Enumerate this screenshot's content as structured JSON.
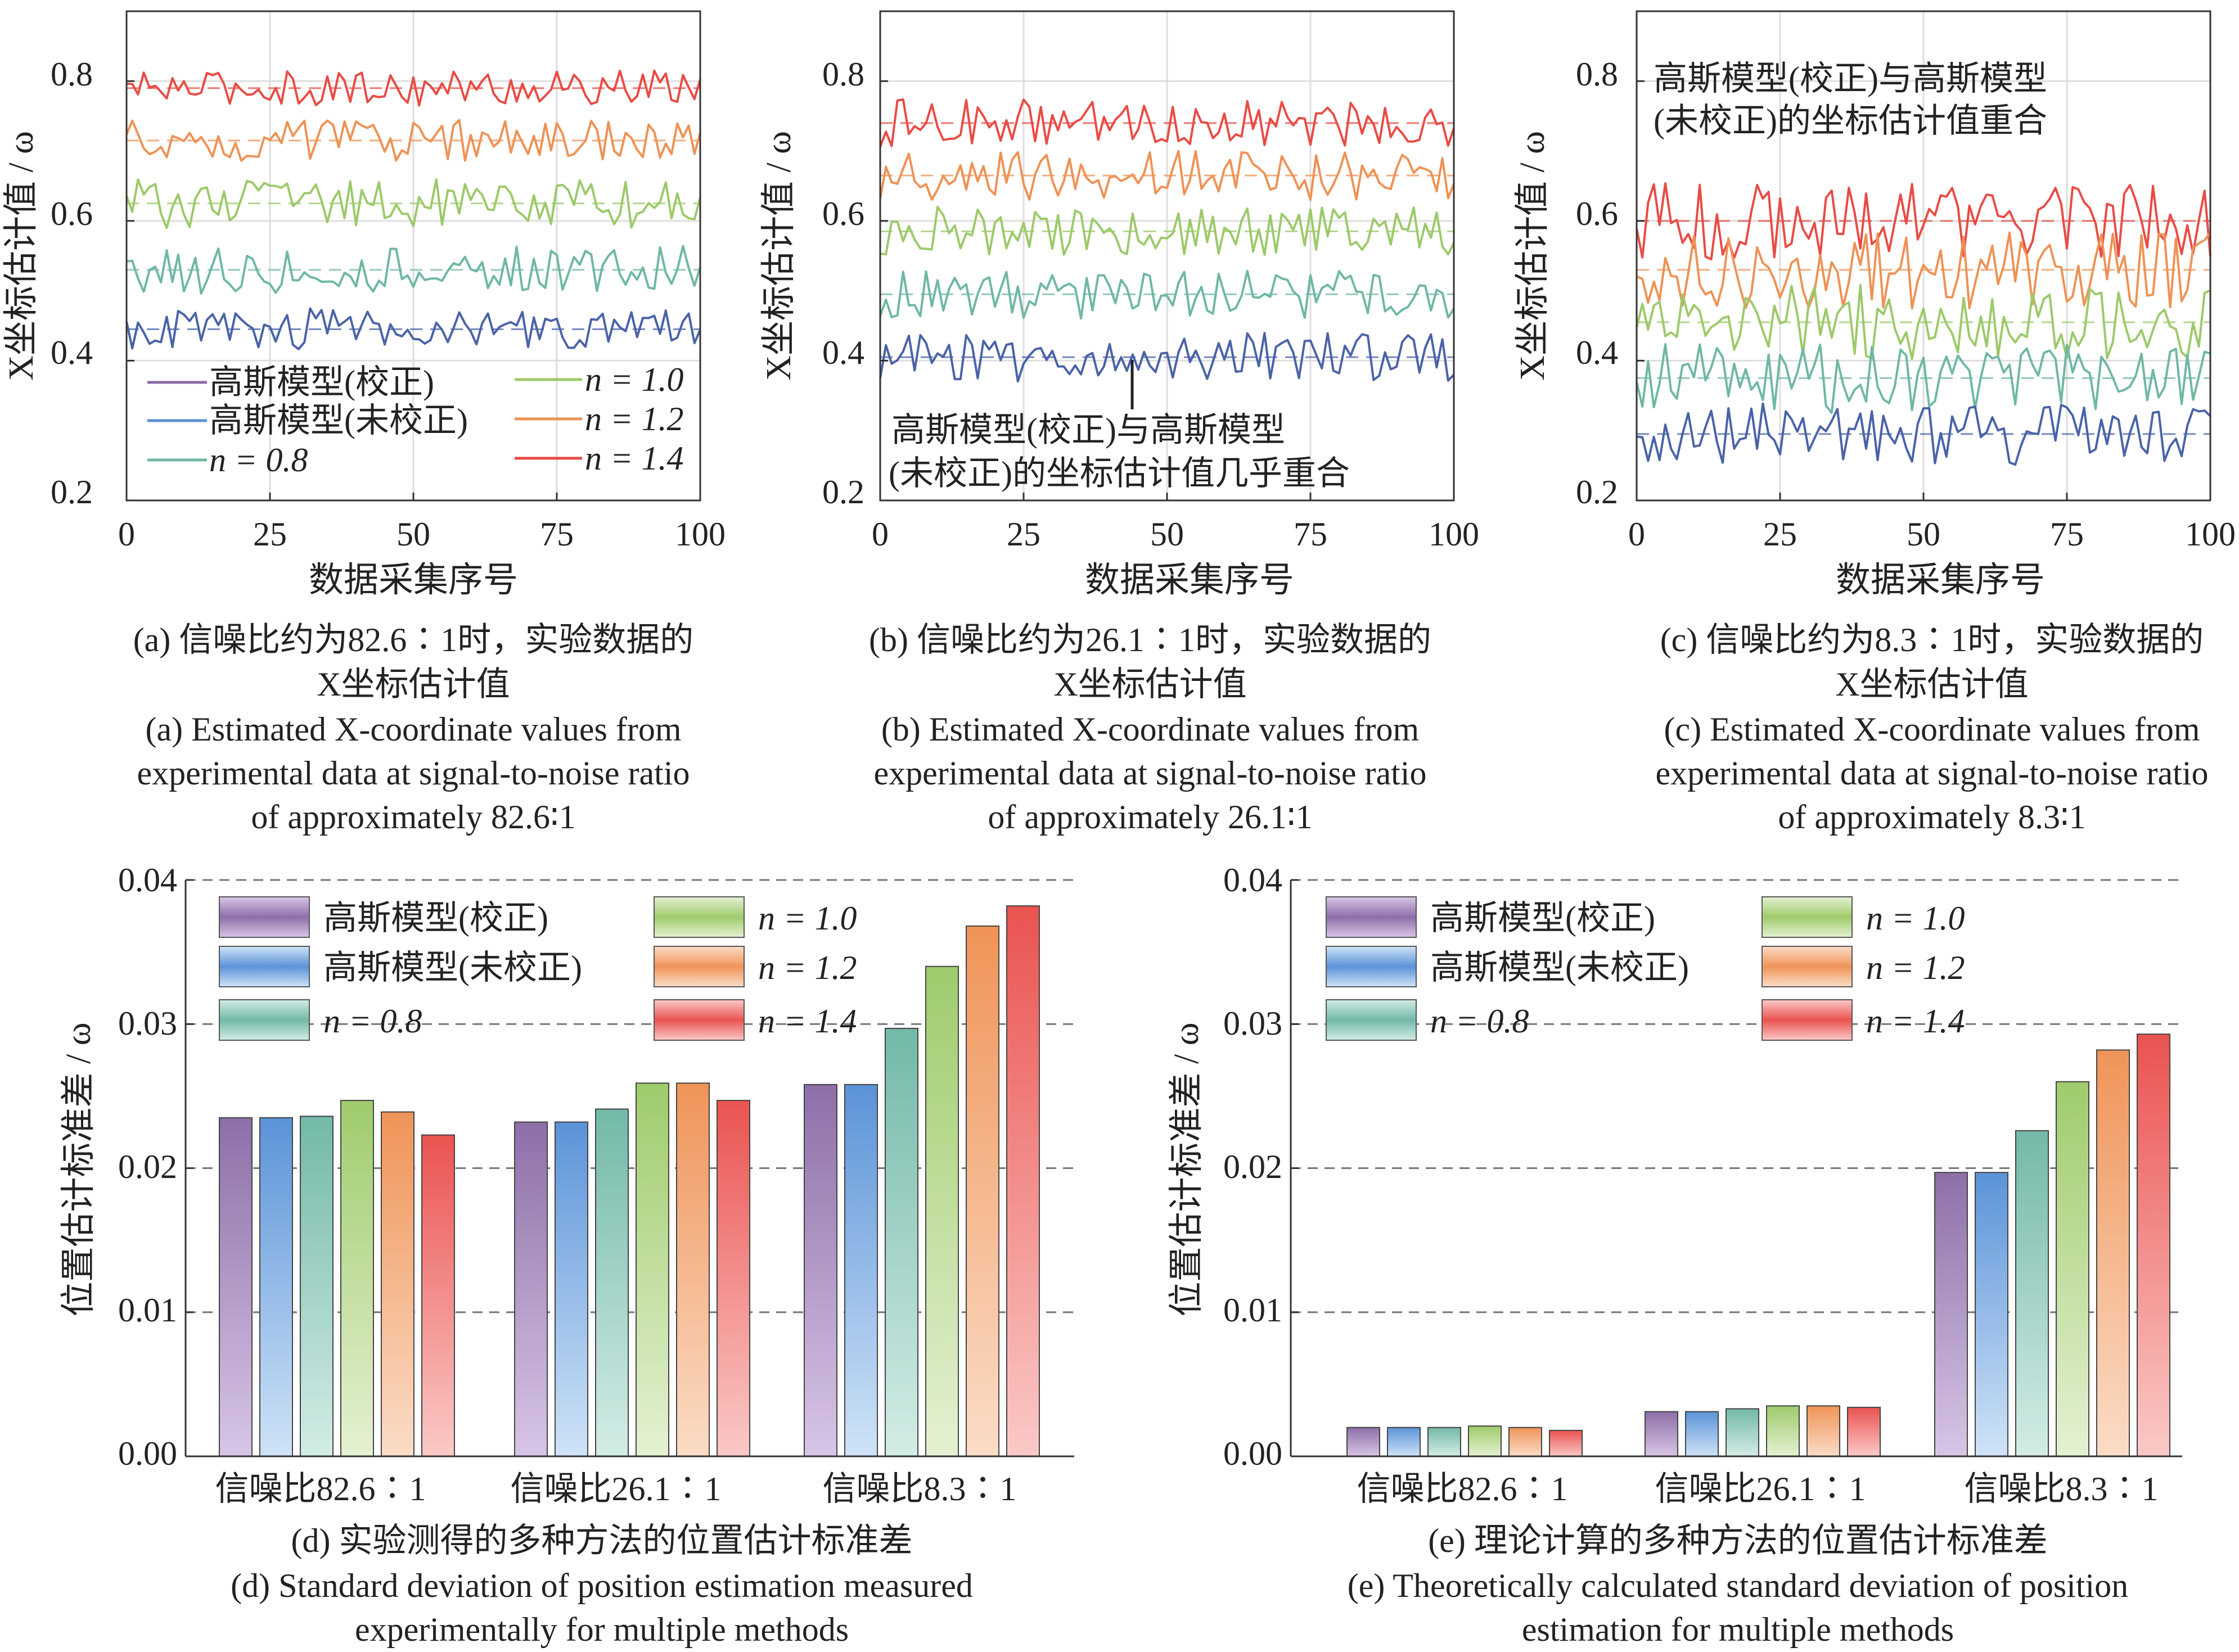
{
  "colors": {
    "gauss_corrected": "#8a6aa6",
    "gauss_uncorrected": "#5a8fd4",
    "n08": "#6fb7a5",
    "n10": "#9cc96a",
    "n12": "#ee9255",
    "n14": "#e94b45",
    "line_blue_series": "#4a63a8"
  },
  "legend_line": {
    "gauss_corrected": "高斯模型(校正)",
    "gauss_uncorrected": "高斯模型(未校正)",
    "n08": "n = 0.8",
    "n10": "n = 1.0",
    "n12": "n = 1.2",
    "n14": "n = 1.4"
  },
  "legend_bar": {
    "gauss_corrected": "高斯模型(校正)",
    "gauss_uncorrected": "高斯模型(未校正)",
    "n08": "n = 0.8",
    "n10": "n = 1.0",
    "n12": "n = 1.2",
    "n14": "n = 1.4"
  },
  "annotations": {
    "b_line1": "高斯模型(校正)与高斯模型",
    "b_line2": "(未校正)的坐标估计值几乎重合",
    "c_line1": "高斯模型(校正)与高斯模型",
    "c_line2": "(未校正)的坐标估计值重合"
  },
  "captions": {
    "a_cn1": "(a) 信噪比约为82.6∶1时，实验数据的",
    "a_cn2": "X坐标估计值",
    "a_en1": "(a) Estimated X-coordinate values from",
    "a_en2": "experimental data at signal-to-noise ratio",
    "a_en3": "of approximately 82.6∶1",
    "b_cn1": "(b) 信噪比约为26.1∶1时，实验数据的",
    "b_cn2": "X坐标估计值",
    "b_en1": "(b) Estimated X-coordinate values from",
    "b_en2": "experimental data at signal-to-noise ratio",
    "b_en3": "of approximately 26.1∶1",
    "c_cn1": "(c) 信噪比约为8.3∶1时，实验数据的",
    "c_cn2": "X坐标估计值",
    "c_en1": "(c) Estimated X-coordinate values from",
    "c_en2": "experimental data at signal-to-noise ratio",
    "c_en3": "of approximately 8.3∶1",
    "d_cn": "(d) 实验测得的多种方法的位置估计标准差",
    "d_en1": "(d) Standard deviation of position estimation measured",
    "d_en2": "experimentally for multiple methods",
    "e_cn": "(e) 理论计算的多种方法的位置估计标准差",
    "e_en1": "(e) Theoretically calculated standard deviation of position",
    "e_en2": "estimation for multiple methods"
  },
  "chart_data": [
    {
      "id": "a",
      "type": "line",
      "xlabel": "数据采集序号",
      "ylabel": "X坐标估计值 / ω",
      "xlim": [
        0,
        100
      ],
      "ylim": [
        0.2,
        0.9
      ],
      "xticks": [
        "0",
        "25",
        "50",
        "75",
        "100"
      ],
      "yticks": [
        "0.2",
        "0.4",
        "0.6",
        "0.8"
      ],
      "series": [
        {
          "name": "n = 1.4",
          "color": "#e94b45",
          "mean": 0.79,
          "amplitude": 0.025
        },
        {
          "name": "n = 1.2",
          "color": "#ee9255",
          "mean": 0.715,
          "amplitude": 0.03
        },
        {
          "name": "n = 1.0",
          "color": "#9cc96a",
          "mean": 0.625,
          "amplitude": 0.035
        },
        {
          "name": "n = 0.8",
          "color": "#6fb7a5",
          "mean": 0.53,
          "amplitude": 0.035
        },
        {
          "name": "高斯模型(校正)",
          "color": "#4a63a8",
          "mean": 0.445,
          "amplitude": 0.03
        }
      ]
    },
    {
      "id": "b",
      "type": "line",
      "xlabel": "数据采集序号",
      "ylabel": "X坐标估计值 / ω",
      "xlim": [
        0,
        100
      ],
      "ylim": [
        0.2,
        0.9
      ],
      "xticks": [
        "0",
        "25",
        "50",
        "75",
        "100"
      ],
      "yticks": [
        "0.2",
        "0.4",
        "0.6",
        "0.8"
      ],
      "series": [
        {
          "name": "n = 1.4",
          "color": "#e94b45",
          "mean": 0.74,
          "amplitude": 0.035
        },
        {
          "name": "n = 1.2",
          "color": "#ee9255",
          "mean": 0.665,
          "amplitude": 0.035
        },
        {
          "name": "n = 1.0",
          "color": "#9cc96a",
          "mean": 0.585,
          "amplitude": 0.035
        },
        {
          "name": "n = 0.8",
          "color": "#6fb7a5",
          "mean": 0.495,
          "amplitude": 0.035
        },
        {
          "name": "高斯模型(校正)",
          "color": "#4a63a8",
          "mean": 0.405,
          "amplitude": 0.035
        }
      ]
    },
    {
      "id": "c",
      "type": "line",
      "xlabel": "数据采集序号",
      "ylabel": "X坐标估计值 / ω",
      "xlim": [
        0,
        100
      ],
      "ylim": [
        0.2,
        0.9
      ],
      "xticks": [
        "0",
        "25",
        "50",
        "75",
        "100"
      ],
      "yticks": [
        "0.2",
        "0.4",
        "0.6",
        "0.8"
      ],
      "series": [
        {
          "name": "n = 1.4",
          "color": "#e94b45",
          "mean": 0.6,
          "amplitude": 0.055
        },
        {
          "name": "n = 1.2",
          "color": "#ee9255",
          "mean": 0.53,
          "amplitude": 0.055
        },
        {
          "name": "n = 1.0",
          "color": "#9cc96a",
          "mean": 0.455,
          "amplitude": 0.055
        },
        {
          "name": "n = 0.8",
          "color": "#6fb7a5",
          "mean": 0.375,
          "amplitude": 0.05
        },
        {
          "name": "高斯模型(校正)",
          "color": "#4a63a8",
          "mean": 0.295,
          "amplitude": 0.045
        }
      ]
    },
    {
      "id": "d",
      "type": "bar",
      "ylabel": "位置估计标准差 / ω",
      "ylim": [
        0,
        0.04
      ],
      "yticks": [
        "0.00",
        "0.01",
        "0.02",
        "0.03",
        "0.04"
      ],
      "categories": [
        "信噪比82.6∶1",
        "信噪比26.1∶1",
        "信噪比8.3∶1"
      ],
      "series": [
        {
          "name": "高斯模型(校正)",
          "values": [
            0.0235,
            0.0232,
            0.0258
          ]
        },
        {
          "name": "高斯模型(未校正)",
          "values": [
            0.0235,
            0.0232,
            0.0258
          ]
        },
        {
          "name": "n = 0.8",
          "values": [
            0.0236,
            0.0241,
            0.0297
          ]
        },
        {
          "name": "n = 1.0",
          "values": [
            0.0247,
            0.0259,
            0.034
          ]
        },
        {
          "name": "n = 1.2",
          "values": [
            0.0239,
            0.0259,
            0.0368
          ]
        },
        {
          "name": "n = 1.4",
          "values": [
            0.0223,
            0.0247,
            0.0382
          ]
        }
      ]
    },
    {
      "id": "e",
      "type": "bar",
      "ylabel": "位置估计标准差 / ω",
      "ylim": [
        0,
        0.04
      ],
      "yticks": [
        "0.00",
        "0.01",
        "0.02",
        "0.03",
        "0.04"
      ],
      "categories": [
        "信噪比82.6∶1",
        "信噪比26.1∶1",
        "信噪比8.3∶1"
      ],
      "series": [
        {
          "name": "高斯模型(校正)",
          "values": [
            0.002,
            0.0031,
            0.0197
          ]
        },
        {
          "name": "高斯模型(未校正)",
          "values": [
            0.002,
            0.0031,
            0.0197
          ]
        },
        {
          "name": "n = 0.8",
          "values": [
            0.002,
            0.0033,
            0.0226
          ]
        },
        {
          "name": "n = 1.0",
          "values": [
            0.0021,
            0.0035,
            0.026
          ]
        },
        {
          "name": "n = 1.2",
          "values": [
            0.002,
            0.0035,
            0.0282
          ]
        },
        {
          "name": "n = 1.4",
          "values": [
            0.0018,
            0.0034,
            0.0293
          ]
        }
      ]
    }
  ]
}
